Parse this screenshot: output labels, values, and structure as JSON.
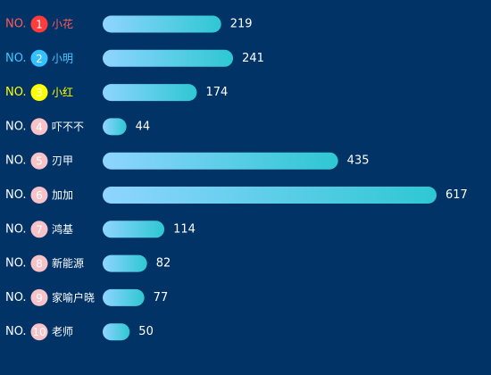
{
  "chart_data": {
    "type": "bar",
    "orientation": "horizontal",
    "rank_prefix": "NO.",
    "ranks": [
      "1",
      "2",
      "3",
      "4",
      "5",
      "6",
      "7",
      "8",
      "9",
      "10"
    ],
    "categories": [
      "小花",
      "小明",
      "小红",
      "吓不不",
      "刃甲",
      "加加",
      "鸿基",
      "新能源",
      "家喻户晓",
      "老师"
    ],
    "values": [
      219,
      241,
      174,
      44,
      435,
      617,
      114,
      82,
      77,
      50
    ],
    "title": "",
    "xlabel": "",
    "ylabel": "",
    "xlim": [
      0,
      617
    ],
    "grid": false,
    "legend": "none",
    "bar_gradient": [
      "#8fd5ff",
      "#2ec7d3"
    ],
    "rank_styles": [
      {
        "text_color": "#ff5a5a",
        "badge_color": "#ff3b3b",
        "badge_text": "#ffffff"
      },
      {
        "text_color": "#3fc8ff",
        "badge_color": "#35c1ff",
        "badge_text": "#ffffff"
      },
      {
        "text_color": "#ffff00",
        "badge_color": "#ffff00",
        "badge_text": "#ffffff"
      },
      {
        "text_color": "#ffffff",
        "badge_color": "#f7c2c8",
        "badge_text": "#ffffff"
      }
    ],
    "value_label_color": "#ffffff"
  }
}
